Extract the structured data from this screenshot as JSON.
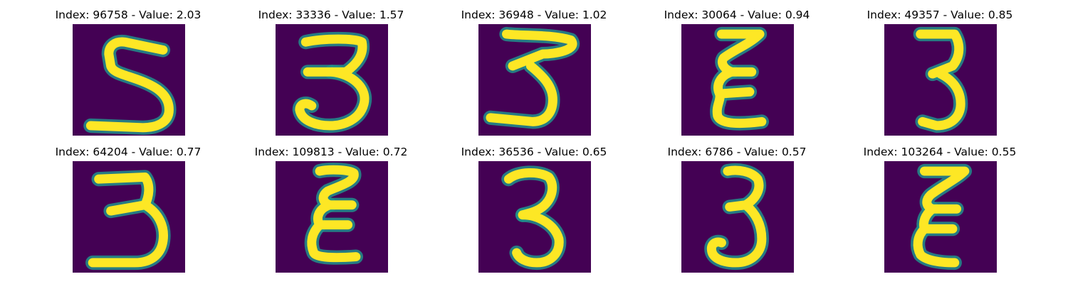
{
  "background_color": "#440154",
  "stroke_color": "#fde725",
  "edge_color": "#21918c",
  "panels": [
    {
      "title": "Index: 96758 - Value: 2.03",
      "glyph": "5"
    },
    {
      "title": "Index: 33336 - Value: 1.57",
      "glyph": "3"
    },
    {
      "title": "Index: 36948 - Value: 1.02",
      "glyph": "3"
    },
    {
      "title": "Index: 30064 - Value: 0.94",
      "glyph": "ε"
    },
    {
      "title": "Index: 49357 - Value: 0.85",
      "glyph": "3"
    },
    {
      "title": "Index: 64204 - Value: 0.77",
      "glyph": "3"
    },
    {
      "title": "Index: 109813 - Value: 0.72",
      "glyph": "ε"
    },
    {
      "title": "Index: 36536 - Value: 0.65",
      "glyph": "3"
    },
    {
      "title": "Index: 6786 - Value: 0.57",
      "glyph": "3"
    },
    {
      "title": "Index: 103264 - Value: 0.55",
      "glyph": "ε"
    }
  ]
}
